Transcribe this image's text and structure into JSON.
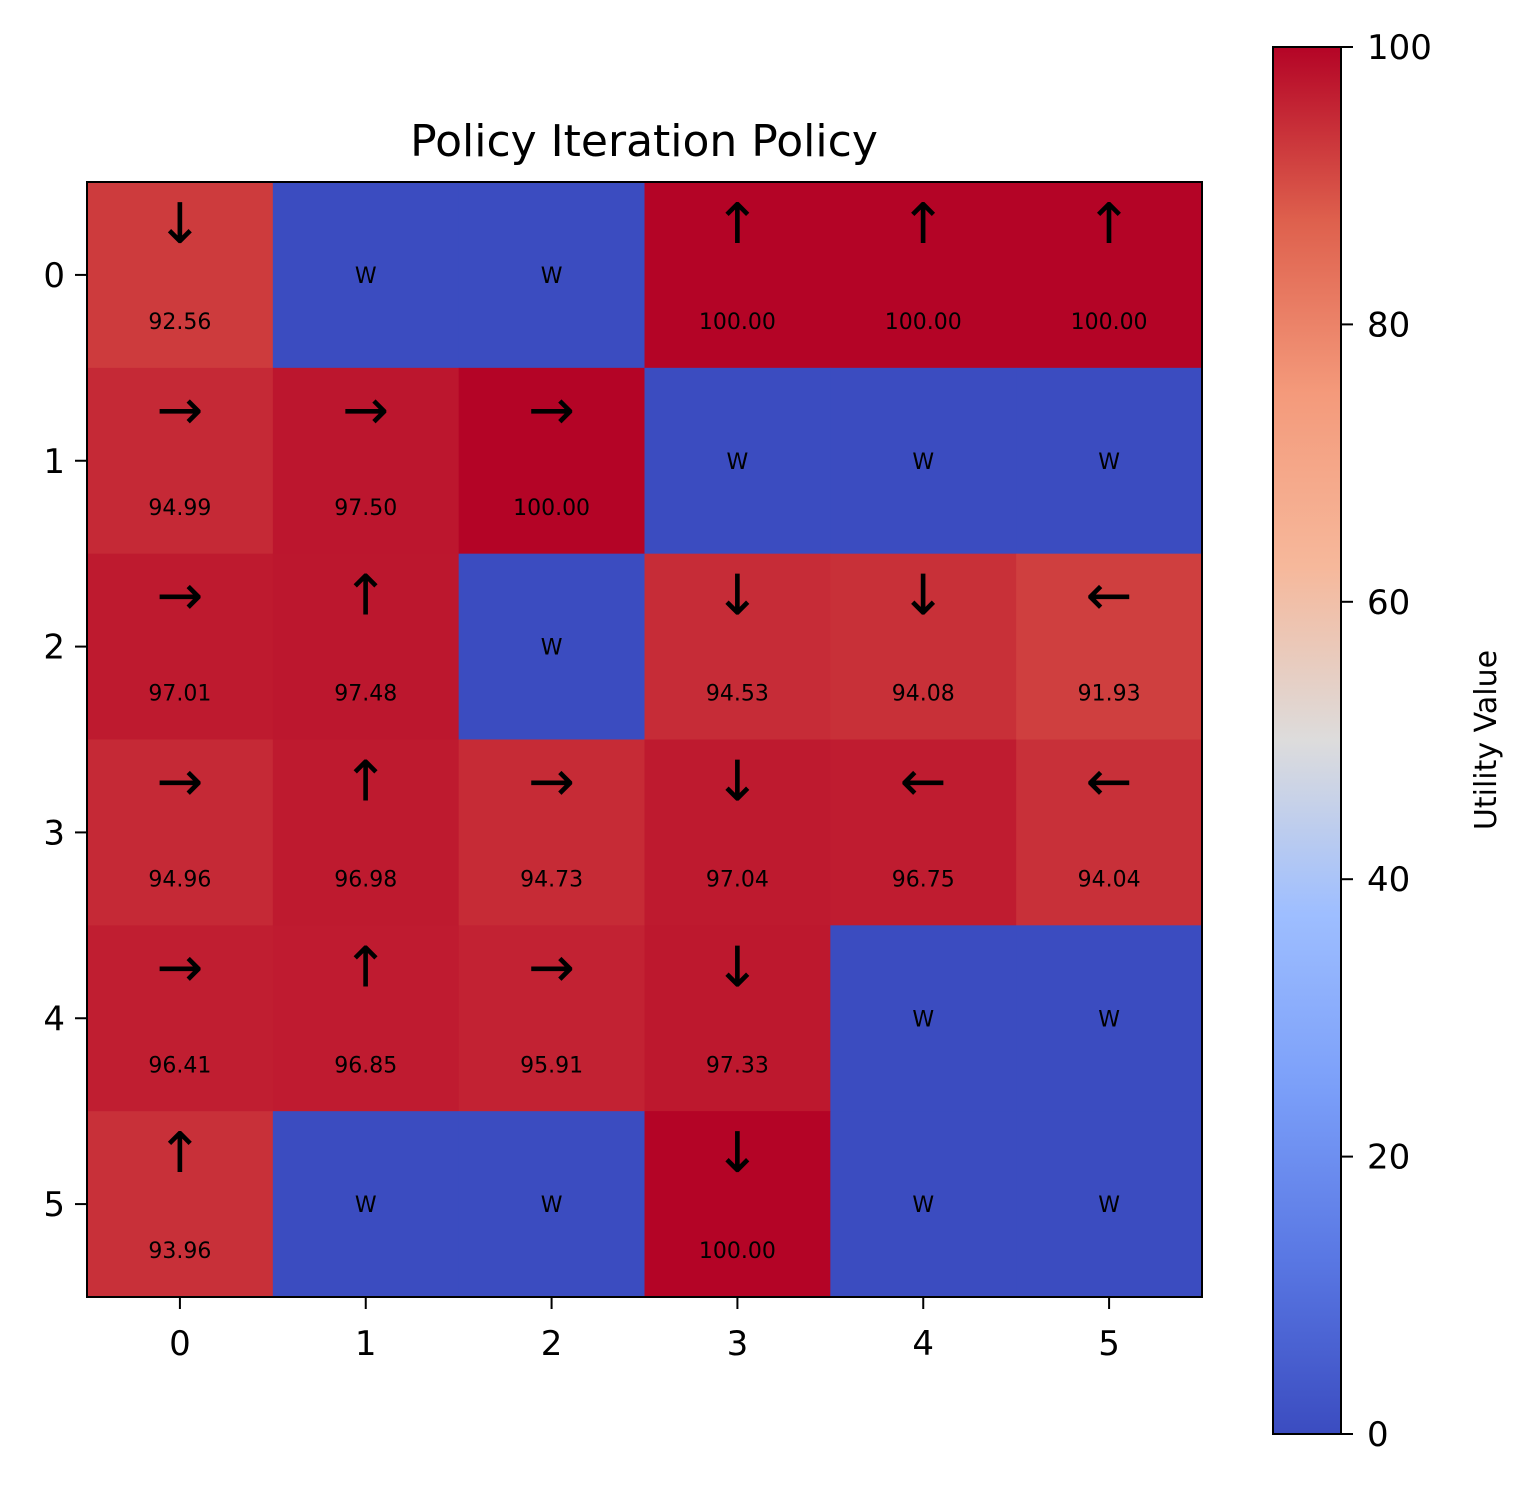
{
  "chart_data": {
    "type": "heatmap",
    "title": "Policy Iteration Policy",
    "x_ticks": [
      "0",
      "1",
      "2",
      "3",
      "4",
      "5"
    ],
    "y_ticks": [
      "0",
      "1",
      "2",
      "3",
      "4",
      "5"
    ],
    "wall_label": "W",
    "values": [
      [
        92.56,
        0,
        0,
        100.0,
        100.0,
        100.0
      ],
      [
        94.99,
        97.5,
        100.0,
        0,
        0,
        0
      ],
      [
        97.01,
        97.48,
        0,
        94.53,
        94.08,
        91.93
      ],
      [
        94.96,
        96.98,
        94.73,
        97.04,
        96.75,
        94.04
      ],
      [
        96.41,
        96.85,
        95.91,
        97.33,
        0,
        0
      ],
      [
        93.96,
        0,
        0,
        100.0,
        0,
        0
      ]
    ],
    "value_labels": [
      [
        "92.56",
        "",
        "",
        "100.00",
        "100.00",
        "100.00"
      ],
      [
        "94.99",
        "97.50",
        "100.00",
        "",
        "",
        ""
      ],
      [
        "97.01",
        "97.48",
        "",
        "94.53",
        "94.08",
        "91.93"
      ],
      [
        "94.96",
        "96.98",
        "94.73",
        "97.04",
        "96.75",
        "94.04"
      ],
      [
        "96.41",
        "96.85",
        "95.91",
        "97.33",
        "",
        ""
      ],
      [
        "93.96",
        "",
        "",
        "100.00",
        "",
        ""
      ]
    ],
    "walls": [
      [
        false,
        true,
        true,
        false,
        false,
        false
      ],
      [
        false,
        false,
        false,
        true,
        true,
        true
      ],
      [
        false,
        false,
        true,
        false,
        false,
        false
      ],
      [
        false,
        false,
        false,
        false,
        false,
        false
      ],
      [
        false,
        false,
        false,
        false,
        true,
        true
      ],
      [
        false,
        true,
        true,
        false,
        true,
        true
      ]
    ],
    "policy": [
      [
        "↓",
        "",
        "",
        "↑",
        "↑",
        "↑"
      ],
      [
        "→",
        "→",
        "→",
        "",
        "",
        ""
      ],
      [
        "→",
        "↑",
        "",
        "↓",
        "↓",
        "←"
      ],
      [
        "→",
        "↑",
        "→",
        "↓",
        "←",
        "←"
      ],
      [
        "→",
        "↑",
        "→",
        "↓",
        "",
        ""
      ],
      [
        "↑",
        "",
        "",
        "↓",
        "",
        ""
      ]
    ],
    "colorbar": {
      "label": "Utility Value",
      "range": [
        0,
        100
      ],
      "ticks": [
        "0",
        "20",
        "40",
        "60",
        "80",
        "100"
      ],
      "colormap": "coolwarm"
    }
  }
}
